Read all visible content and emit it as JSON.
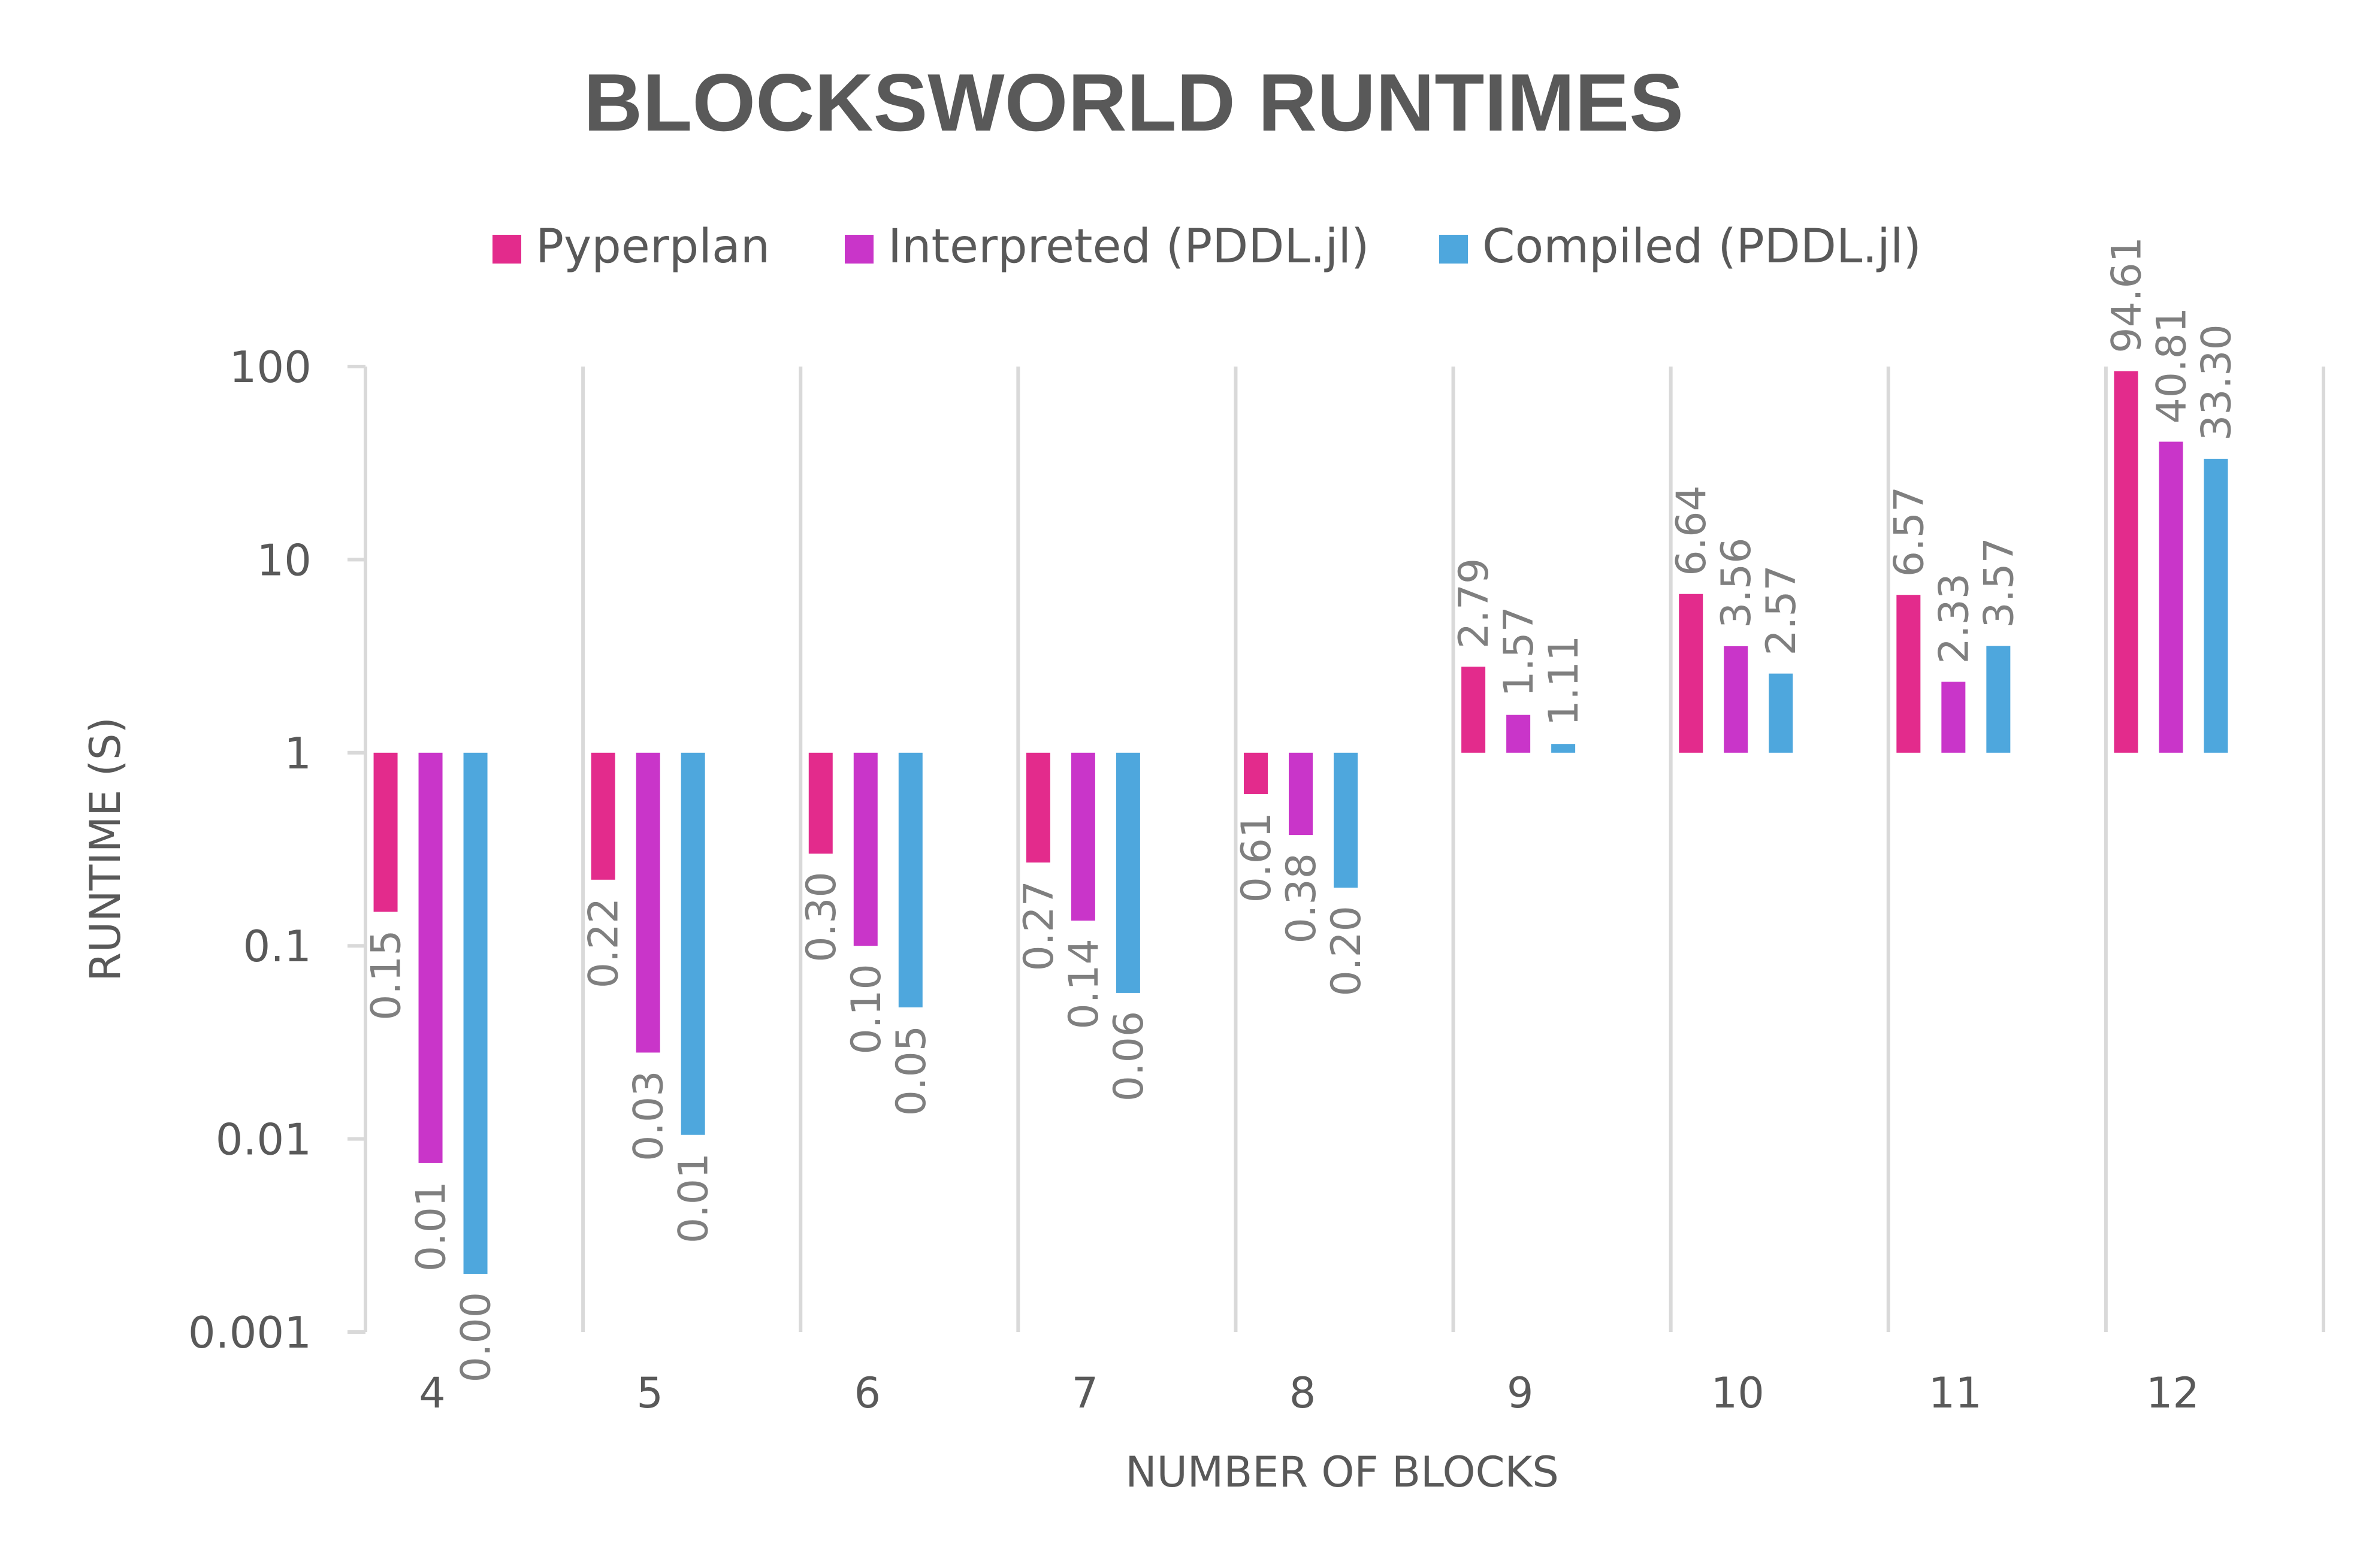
{
  "chart_data": {
    "type": "bar",
    "title": "BLOCKSWORLD RUNTIMES",
    "xlabel": "NUMBER OF BLOCKS",
    "ylabel": "RUNTIME (S)",
    "y_scale": "log",
    "ylim": [
      0.001,
      100
    ],
    "y_ticks": [
      "0.001",
      "0.01",
      "0.1",
      "1",
      "10",
      "100"
    ],
    "bar_baseline": 1,
    "grid": "vertical category separators",
    "legend_position": "top-center",
    "categories": [
      "4",
      "5",
      "6",
      "7",
      "8",
      "9",
      "10",
      "11",
      "12"
    ],
    "series": [
      {
        "name": "Pyperplan",
        "color": "#e32b8c",
        "values": [
          0.15,
          0.22,
          0.3,
          0.27,
          0.61,
          2.79,
          6.64,
          6.57,
          94.61
        ],
        "labels": [
          "0.15",
          "0.22",
          "0.30",
          "0.27",
          "0.61",
          "2.79",
          "6.64",
          "6.57",
          "94.61"
        ]
      },
      {
        "name": "Interpreted (PDDL.jl)",
        "color": "#c935c9",
        "values": [
          0.0075,
          0.028,
          0.1,
          0.135,
          0.375,
          1.57,
          3.56,
          2.33,
          40.81
        ],
        "labels": [
          "0.01",
          "0.03",
          "0.10",
          "0.14",
          "0.38",
          "1.57",
          "3.56",
          "2.33",
          "40.81"
        ]
      },
      {
        "name": "Compiled (PDDL.jl)",
        "color": "#4ea7dd",
        "values": [
          0.002,
          0.0105,
          0.048,
          0.057,
          0.2,
          1.11,
          2.57,
          3.57,
          33.3
        ],
        "labels": [
          "0.00",
          "0.01",
          "0.05",
          "0.06",
          "0.20",
          "1.11",
          "2.57",
          "3.57",
          "33.30"
        ]
      }
    ]
  }
}
